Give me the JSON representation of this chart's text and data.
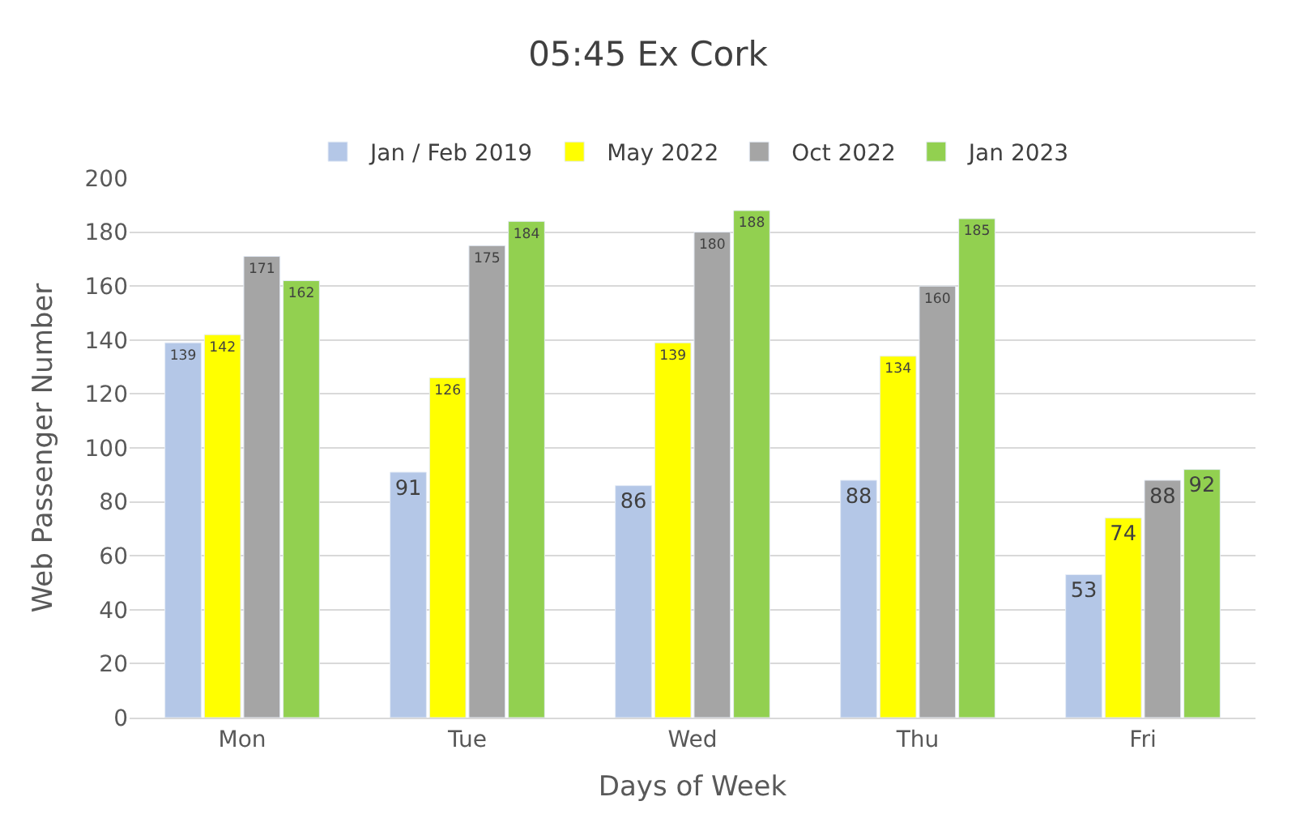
{
  "chart_data": {
    "type": "bar",
    "title": "05:45 Ex Cork",
    "xlabel": "Days of Week",
    "ylabel": "Web Passenger Number",
    "categories": [
      "Mon",
      "Tue",
      "Wed",
      "Thu",
      "Fri"
    ],
    "series": [
      {
        "name": "Jan / Feb 2019",
        "color": "#b4c7e7",
        "values": [
          139,
          91,
          86,
          88,
          53
        ]
      },
      {
        "name": "May 2022",
        "color": "#ffff00",
        "values": [
          142,
          126,
          139,
          134,
          74
        ]
      },
      {
        "name": "Oct 2022",
        "color": "#a5a5a5",
        "values": [
          171,
          175,
          180,
          160,
          88
        ]
      },
      {
        "name": "Jan 2023",
        "color": "#92d050",
        "values": [
          162,
          184,
          188,
          185,
          92
        ]
      }
    ],
    "ylim": [
      0,
      200
    ],
    "yticks": [
      0,
      20,
      40,
      60,
      80,
      100,
      120,
      140,
      160,
      180,
      200
    ],
    "grid": "y",
    "legend": "top",
    "data_labels": true
  }
}
